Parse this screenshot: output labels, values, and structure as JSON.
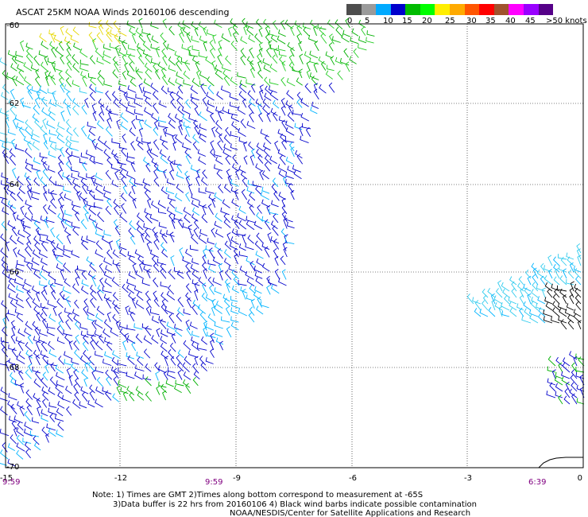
{
  "title": "ASCAT 25KM NOAA Winds 20160106 descending",
  "legend": {
    "unit_label": ">50 knots",
    "ticks": [
      "0",
      "5",
      "10",
      "15",
      "20",
      "25",
      "30",
      "35",
      "40",
      "45"
    ],
    "colors": [
      "#4d4d4d",
      "#9a9a9a",
      "#00aaff",
      "#0000cc",
      "#00bb00",
      "#00ff00",
      "#ffee00",
      "#ffaa00",
      "#ff5500",
      "#ff0000",
      "#a0522d",
      "#ff00ff",
      "#9900ff",
      "#550088"
    ]
  },
  "axes": {
    "lon_labels": [
      "-15",
      "-12",
      "-9",
      "-6",
      "-3",
      "0"
    ],
    "lat_labels": [
      "-60",
      "-62",
      "-64",
      "-66",
      "-68",
      "-70"
    ]
  },
  "times": {
    "left": "9:59",
    "middle": "9:59",
    "right": "6:39"
  },
  "notes": {
    "line1": "Note: 1) Times are GMT 2)Times along bottom correspond to measurement at -65S",
    "line2": "3)Data buffer is 22 hrs from 20160106 4) Black wind barbs indicate possible contamination",
    "line3": "NOAA/NESDIS/Center for Satellite Applications and Research"
  },
  "wind_colors": {
    "yellow": "#e6d800",
    "green": "#00b000",
    "lime": "#22cc22",
    "blue": "#0000cc",
    "cyan": "#00b4ff",
    "lightcyan": "#33ccee",
    "black": "#000000"
  }
}
